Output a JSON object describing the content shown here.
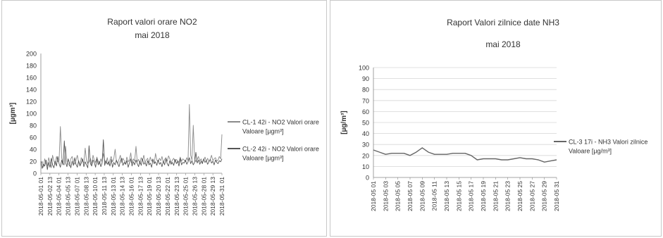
{
  "chart_data": [
    {
      "type": "line",
      "title": "Raport valori orare NO2",
      "subtitle": "mai 2018",
      "ylabel": "[µgm³]",
      "xlabel": "",
      "ylim": [
        0,
        200
      ],
      "yticks": [
        0,
        20,
        40,
        60,
        80,
        100,
        120,
        140,
        160,
        180,
        200
      ],
      "grid": false,
      "legend": "right",
      "xtick_labels": [
        "2018-05-01 01",
        "2018-05-02 13",
        "2018-05-04 01",
        "2018-05-05 13",
        "2018-05-07 01",
        "2018-05-08 13",
        "2018-05-10 01",
        "2018-05-11 13",
        "2018-05-13 01",
        "2018-05-14 13",
        "2018-05-16 01",
        "2018-05-17 13",
        "2018-05-19 01",
        "2018-05-20 13",
        "2018-05-22 01",
        "2018-05-23 13",
        "2018-05-25 01",
        "2018-05-26 13",
        "2018-05-28 01",
        "2018-05-29 13",
        "2018-05-31 01"
      ],
      "series": [
        {
          "name": "CL-1 42i - NO2 Valori orare Valoare [µgm³]",
          "color": "#8a8a8a",
          "values": [
            14,
            20,
            10,
            24,
            16,
            12,
            26,
            18,
            9,
            30,
            21,
            15,
            28,
            19,
            22,
            78,
            25,
            17,
            14,
            45,
            20,
            16,
            12,
            24,
            28,
            19,
            15,
            22,
            30,
            18,
            13,
            26,
            20,
            17,
            42,
            21,
            16,
            19,
            25,
            14,
            30,
            22,
            18,
            27,
            20,
            15,
            24,
            19,
            33,
            21,
            17,
            26,
            14,
            22,
            28,
            19,
            24,
            40,
            20,
            16,
            23,
            30,
            18,
            25,
            21,
            15,
            27,
            19,
            22,
            34,
            17,
            24,
            20,
            45,
            19,
            23,
            16,
            26,
            21,
            30,
            18,
            22,
            25,
            17,
            27,
            20,
            24,
            16,
            33,
            22,
            19,
            25,
            21,
            28,
            18,
            23,
            26,
            20,
            29,
            24,
            17,
            22,
            25,
            19,
            23,
            21,
            18,
            27,
            20,
            24,
            22,
            19,
            26,
            21,
            115,
            30,
            22,
            80,
            25,
            19,
            23,
            28,
            20,
            24,
            18,
            22,
            27,
            20,
            25,
            19,
            23,
            30,
            21,
            24,
            26,
            20,
            22,
            28,
            24,
            65
          ]
        },
        {
          "name": "CL-2 42i - NO2 Valori orare Valoare [µgm³]",
          "color": "#555555",
          "values": [
            20,
            8,
            15,
            12,
            22,
            6,
            18,
            10,
            25,
            14,
            9,
            20,
            12,
            28,
            16,
            10,
            22,
            14,
            54,
            18,
            11,
            24,
            16,
            9,
            20,
            13,
            26,
            15,
            10,
            21,
            12,
            17,
            24,
            11,
            19,
            14,
            9,
            46,
            16,
            12,
            22,
            18,
            10,
            24,
            14,
            20,
            11,
            17,
            56,
            13,
            21,
            15,
            19,
            12,
            23,
            10,
            18,
            14,
            22,
            16,
            11,
            20,
            25,
            13,
            18,
            15,
            21,
            10,
            17,
            24,
            12,
            19,
            14,
            22,
            16,
            11,
            20,
            13,
            24,
            15,
            18,
            12,
            21,
            14,
            17,
            10,
            23,
            16,
            19,
            13,
            22,
            15,
            18,
            11,
            20,
            14,
            24,
            16,
            12,
            21,
            15,
            18,
            13,
            23,
            16,
            20,
            12,
            25,
            14,
            18,
            17,
            22,
            15,
            19,
            26,
            16,
            21,
            14,
            18,
            35,
            17,
            22,
            15,
            20,
            16,
            24,
            18,
            21,
            15,
            19,
            23,
            17,
            20,
            14,
            22,
            18,
            16,
            21,
            19,
            24
          ]
        }
      ]
    },
    {
      "type": "line",
      "title": "Raport Valori zilnice date NH3",
      "subtitle": "mai 2018",
      "ylabel": "[µg/m³]",
      "xlabel": "",
      "ylim": [
        0,
        100
      ],
      "yticks": [
        0,
        10,
        20,
        30,
        40,
        50,
        60,
        70,
        80,
        90,
        100
      ],
      "grid": true,
      "legend": "right",
      "x": [
        "2018-05 01",
        "2018-05 02",
        "2018-05 03",
        "2018-05 04",
        "2018-05 05",
        "2018-05 06",
        "2018-05 07",
        "2018-05 08",
        "2018-05 09",
        "2018-05 10",
        "2018-05 11",
        "2018-05 12",
        "2018-05 13",
        "2018-05 14",
        "2018-05 15",
        "2018-05 16",
        "2018-05 17",
        "2018-05 18",
        "2018-05 19",
        "2018-05 20",
        "2018-05 21",
        "2018-05 22",
        "2018-05 23",
        "2018-05 24",
        "2018-05 25",
        "2018-05 26",
        "2018-05 27",
        "2018-05 28",
        "2018-05 29",
        "2018-05 30",
        "2018-05 31"
      ],
      "xtick_labels": [
        "2018-05 01",
        "2018-05 03",
        "2018-05 05",
        "2018-05 07",
        "2018-05 09",
        "2018-05 11",
        "2018-05 13",
        "2018-05 15",
        "2018-05 17",
        "2018-05 19",
        "2018-05 21",
        "2018-05 23",
        "2018-05 25",
        "2018-05 27",
        "2018-05 29",
        "2018-05 31"
      ],
      "series": [
        {
          "name": "CL-3 17i - NH3 Valori zilnice Valoare [µg/m³]",
          "color": "#666666",
          "values": [
            25,
            23,
            21,
            22,
            22,
            22,
            20,
            23,
            27,
            23,
            21,
            21,
            21,
            22,
            22,
            22,
            20,
            16,
            17,
            17,
            17,
            16,
            16,
            17,
            18,
            17,
            17,
            16,
            14,
            15,
            16
          ]
        }
      ]
    }
  ]
}
